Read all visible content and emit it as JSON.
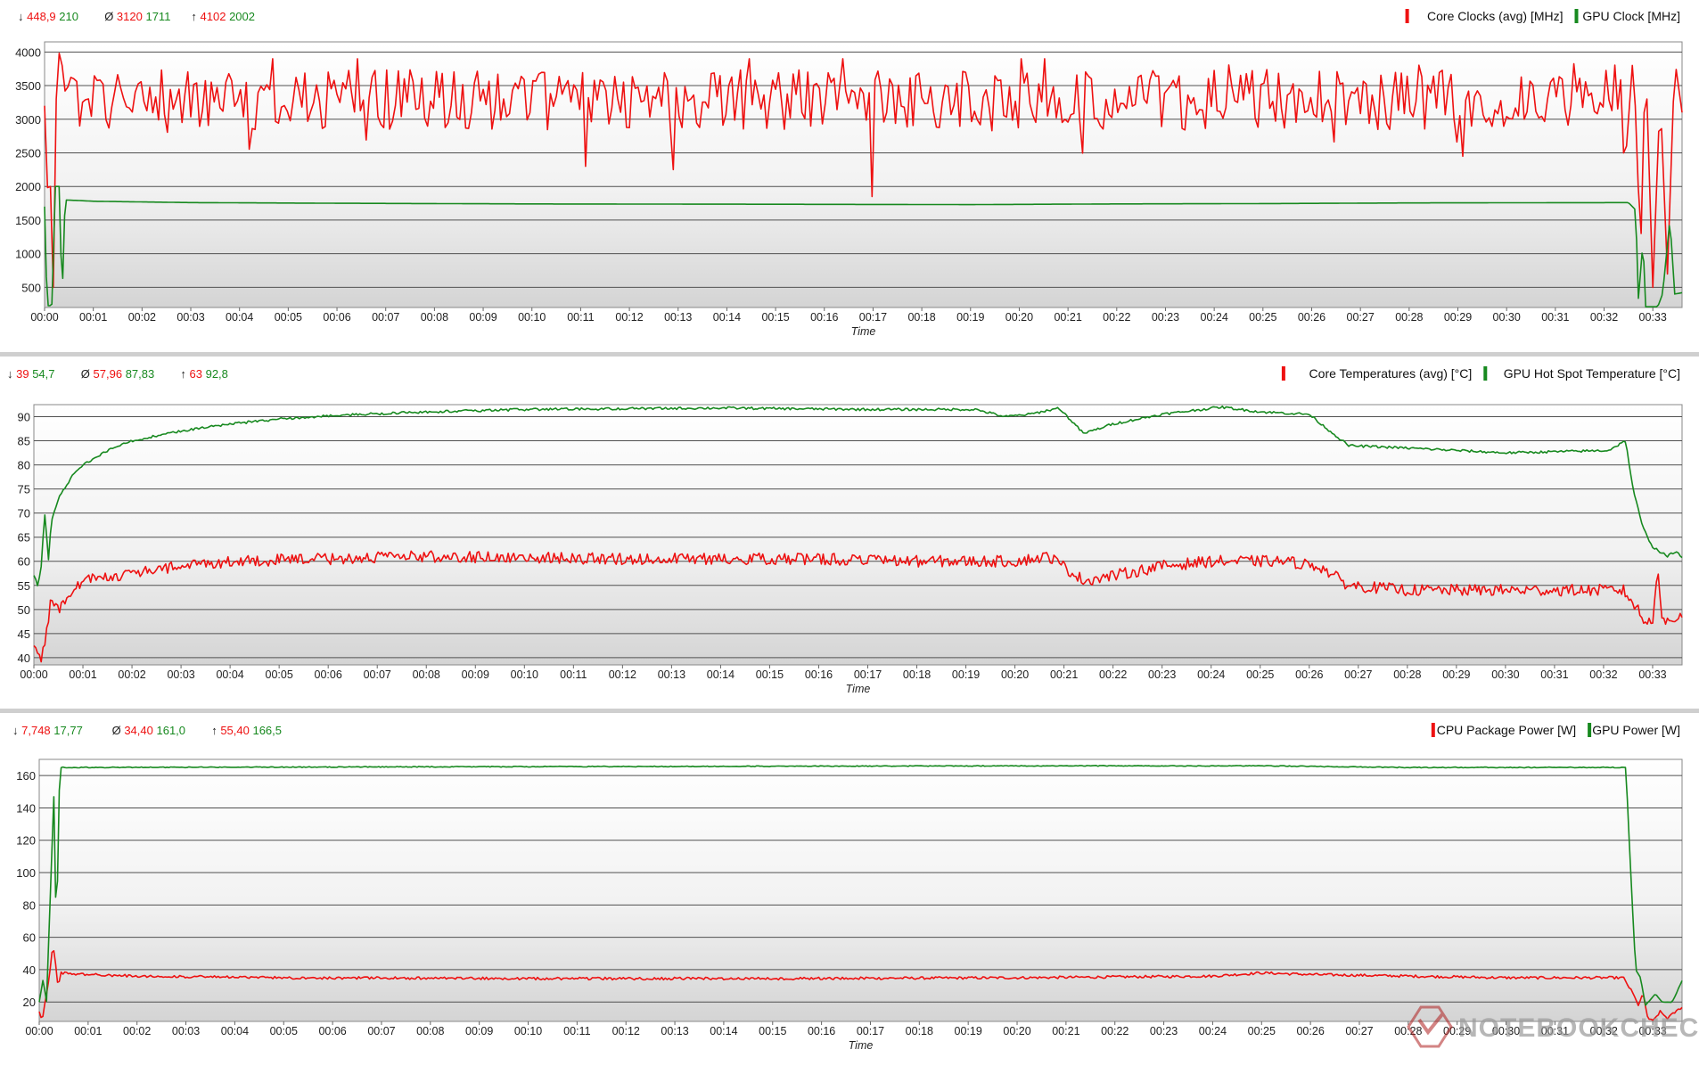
{
  "watermark": "NOTEBOOKCHECK",
  "colors": {
    "red": "#ee1111",
    "green": "#17891f",
    "grid": "#505050",
    "separator": "#cfcfcf"
  },
  "chart_data": [
    {
      "type": "line",
      "xlabel": "Time",
      "x_ticks": [
        "00:00",
        "00:01",
        "00:02",
        "00:03",
        "00:04",
        "00:05",
        "00:06",
        "00:07",
        "00:08",
        "00:09",
        "00:10",
        "00:11",
        "00:12",
        "00:13",
        "00:14",
        "00:15",
        "00:16",
        "00:17",
        "00:18",
        "00:19",
        "00:20",
        "00:21",
        "00:22",
        "00:23",
        "00:24",
        "00:25",
        "00:26",
        "00:27",
        "00:28",
        "00:29",
        "00:30",
        "00:31",
        "00:32",
        "00:33"
      ],
      "x_range_min": [
        0,
        33.6
      ],
      "ylim": [
        200,
        4150
      ],
      "y_ticks": [
        500,
        1000,
        1500,
        2000,
        2500,
        3000,
        3500,
        4000
      ],
      "stats": {
        "min": {
          "symbol": "↓",
          "values": [
            "448,9",
            "210"
          ]
        },
        "avg": {
          "symbol": "Ø",
          "values": [
            "3120",
            "1711"
          ]
        },
        "max": {
          "symbol": "↑",
          "values": [
            "4102",
            "2002"
          ]
        }
      },
      "series": [
        {
          "name": "Core Clocks (avg) [MHz]",
          "color": "#ee1111",
          "key": "cpu_clock",
          "keypoints": [
            [
              0,
              3200
            ],
            [
              0.05,
              2750
            ],
            [
              0.08,
              450
            ],
            [
              0.12,
              2000
            ],
            [
              0.18,
              500
            ],
            [
              0.22,
              3000
            ],
            [
              0.28,
              3900
            ],
            [
              0.33,
              4100
            ],
            [
              0.4,
              3400
            ],
            [
              0.5,
              3500
            ],
            [
              11.1,
              2300
            ],
            [
              12.9,
              2250
            ],
            [
              17.0,
              1850
            ],
            [
              32.45,
              2500
            ],
            [
              32.6,
              4000
            ],
            [
              32.75,
              1000
            ],
            [
              32.85,
              4000
            ],
            [
              33.0,
              500
            ],
            [
              33.15,
              3400
            ],
            [
              33.3,
              700
            ],
            [
              33.45,
              3900
            ],
            [
              33.6,
              3100
            ]
          ],
          "band": [
            2450,
            3900
          ]
        },
        {
          "name": "GPU Clock [MHz]",
          "color": "#17891f",
          "key": "gpu_clock",
          "keypoints": [
            [
              0,
              1700
            ],
            [
              0.05,
              300
            ],
            [
              0.08,
              210
            ],
            [
              0.15,
              250
            ],
            [
              0.22,
              2000
            ],
            [
              0.3,
              2000
            ],
            [
              0.36,
              300
            ],
            [
              0.42,
              1800
            ],
            [
              1,
              1780
            ],
            [
              3,
              1760
            ],
            [
              6,
              1750
            ],
            [
              10,
              1740
            ],
            [
              15,
              1735
            ],
            [
              19,
              1730
            ],
            [
              22,
              1740
            ],
            [
              25,
              1745
            ],
            [
              28,
              1755
            ],
            [
              32.5,
              1760
            ],
            [
              32.65,
              1650
            ],
            [
              32.7,
              300
            ],
            [
              32.8,
              1200
            ],
            [
              32.85,
              210
            ],
            [
              33.1,
              210
            ],
            [
              33.2,
              400
            ],
            [
              33.35,
              1500
            ],
            [
              33.45,
              400
            ],
            [
              33.6,
              420
            ]
          ],
          "band": null
        }
      ]
    },
    {
      "type": "line",
      "xlabel": "Time",
      "x_ticks": [
        "00:00",
        "00:01",
        "00:02",
        "00:03",
        "00:04",
        "00:05",
        "00:06",
        "00:07",
        "00:08",
        "00:09",
        "00:10",
        "00:11",
        "00:12",
        "00:13",
        "00:14",
        "00:15",
        "00:16",
        "00:17",
        "00:18",
        "00:19",
        "00:20",
        "00:21",
        "00:22",
        "00:23",
        "00:24",
        "00:25",
        "00:26",
        "00:27",
        "00:28",
        "00:29",
        "00:30",
        "00:31",
        "00:32",
        "00:33"
      ],
      "x_range_min": [
        0,
        33.6
      ],
      "ylim": [
        38.5,
        92.5
      ],
      "y_ticks": [
        40,
        45,
        50,
        55,
        60,
        65,
        70,
        75,
        80,
        85,
        90
      ],
      "stats": {
        "min": {
          "symbol": "↓",
          "values": [
            "39",
            "54,7"
          ]
        },
        "avg": {
          "symbol": "Ø",
          "values": [
            "57,96",
            "87,83"
          ]
        },
        "max": {
          "symbol": "↑",
          "values": [
            "63",
            "92,8"
          ]
        }
      },
      "series": [
        {
          "name": "Core Temperatures (avg) [°C]",
          "color": "#ee1111",
          "key": "cpu_temp",
          "keypoints": [
            [
              0,
              42
            ],
            [
              0.15,
              40
            ],
            [
              0.25,
              45
            ],
            [
              0.35,
              52
            ],
            [
              0.5,
              50
            ],
            [
              0.75,
              53
            ],
            [
              1,
              56
            ],
            [
              2,
              57.5
            ],
            [
              3,
              59
            ],
            [
              4,
              60
            ],
            [
              6,
              60.5
            ],
            [
              8,
              61
            ],
            [
              12,
              60.5
            ],
            [
              16,
              60.5
            ],
            [
              18,
              60
            ],
            [
              20,
              60
            ],
            [
              20.7,
              61
            ],
            [
              21.4,
              56
            ],
            [
              22,
              57
            ],
            [
              23,
              59
            ],
            [
              24,
              60
            ],
            [
              25.5,
              60
            ],
            [
              26.2,
              59
            ],
            [
              26.8,
              55
            ],
            [
              28,
              54
            ],
            [
              30,
              54
            ],
            [
              32.4,
              54
            ],
            [
              32.7,
              50
            ],
            [
              32.85,
              47
            ],
            [
              33.0,
              48
            ],
            [
              33.1,
              59
            ],
            [
              33.2,
              48
            ],
            [
              33.3,
              47
            ],
            [
              33.6,
              49
            ]
          ],
          "noise": 1.2
        },
        {
          "name": "GPU Hot Spot Temperature [°C]",
          "color": "#17891f",
          "key": "gpu_temp",
          "keypoints": [
            [
              0,
              57
            ],
            [
              0.08,
              55
            ],
            [
              0.15,
              59
            ],
            [
              0.22,
              70
            ],
            [
              0.3,
              60
            ],
            [
              0.35,
              68
            ],
            [
              0.5,
              73
            ],
            [
              0.8,
              78
            ],
            [
              1,
              80
            ],
            [
              1.5,
              83
            ],
            [
              2,
              85
            ],
            [
              3,
              87
            ],
            [
              4,
              88.5
            ],
            [
              5,
              89.5
            ],
            [
              6,
              90.2
            ],
            [
              8,
              91
            ],
            [
              10,
              91.5
            ],
            [
              14,
              91.8
            ],
            [
              17,
              91.5
            ],
            [
              19.2,
              91.5
            ],
            [
              19.8,
              90
            ],
            [
              20.3,
              90.5
            ],
            [
              20.9,
              91.8
            ],
            [
              21.4,
              86.5
            ],
            [
              22,
              88.5
            ],
            [
              23,
              90.5
            ],
            [
              24.2,
              92
            ],
            [
              25,
              91
            ],
            [
              26.0,
              90.5
            ],
            [
              26.3,
              88
            ],
            [
              26.8,
              84
            ],
            [
              28,
              83.5
            ],
            [
              30,
              82.5
            ],
            [
              32.1,
              83
            ],
            [
              32.45,
              85
            ],
            [
              32.6,
              75
            ],
            [
              32.8,
              67
            ],
            [
              33.0,
              63
            ],
            [
              33.3,
              61
            ],
            [
              33.45,
              62
            ],
            [
              33.6,
              61
            ]
          ],
          "noise": 0.25
        }
      ]
    },
    {
      "type": "line",
      "xlabel": "Time",
      "x_ticks": [
        "00:00",
        "00:01",
        "00:02",
        "00:03",
        "00:04",
        "00:05",
        "00:06",
        "00:07",
        "00:08",
        "00:09",
        "00:10",
        "00:11",
        "00:12",
        "00:13",
        "00:14",
        "00:15",
        "00:16",
        "00:17",
        "00:18",
        "00:19",
        "00:20",
        "00:21",
        "00:22",
        "00:23",
        "00:24",
        "00:25",
        "00:26",
        "00:27",
        "00:28",
        "00:29",
        "00:30",
        "00:31",
        "00:32",
        "00:33"
      ],
      "x_range_min": [
        0,
        33.6
      ],
      "ylim": [
        8,
        170
      ],
      "y_ticks": [
        20,
        40,
        60,
        80,
        100,
        120,
        140,
        160
      ],
      "stats": {
        "min": {
          "symbol": "↓",
          "values": [
            "7,748",
            "17,77"
          ]
        },
        "avg": {
          "symbol": "Ø",
          "values": [
            "34,40",
            "161,0"
          ]
        },
        "max": {
          "symbol": "↑",
          "values": [
            "55,40",
            "166,5"
          ]
        }
      },
      "series": [
        {
          "name": "CPU Package Power [W]",
          "color": "#ee1111",
          "key": "cpu_power",
          "keypoints": [
            [
              0,
              14
            ],
            [
              0.06,
              9
            ],
            [
              0.12,
              20
            ],
            [
              0.2,
              35
            ],
            [
              0.28,
              55
            ],
            [
              0.33,
              45
            ],
            [
              0.38,
              30
            ],
            [
              0.45,
              38
            ],
            [
              1,
              37
            ],
            [
              2,
              36
            ],
            [
              5,
              35
            ],
            [
              10,
              34.5
            ],
            [
              15,
              34.5
            ],
            [
              20,
              35
            ],
            [
              24,
              36
            ],
            [
              25,
              38
            ],
            [
              26,
              37
            ],
            [
              28,
              36
            ],
            [
              30,
              35
            ],
            [
              32.4,
              35
            ],
            [
              32.6,
              25
            ],
            [
              32.7,
              18
            ],
            [
              32.8,
              25
            ],
            [
              32.9,
              10
            ],
            [
              33.0,
              8
            ],
            [
              33.15,
              14
            ],
            [
              33.3,
              10
            ],
            [
              33.6,
              17
            ]
          ],
          "noise": 0.8
        },
        {
          "name": "GPU Power [W]",
          "color": "#17891f",
          "key": "gpu_power",
          "keypoints": [
            [
              0,
              20
            ],
            [
              0.08,
              34
            ],
            [
              0.15,
              20
            ],
            [
              0.22,
              80
            ],
            [
              0.3,
              148
            ],
            [
              0.35,
              60
            ],
            [
              0.42,
              165
            ],
            [
              1,
              165
            ],
            [
              10,
              165.5
            ],
            [
              20,
              166
            ],
            [
              25,
              166
            ],
            [
              28,
              165
            ],
            [
              32.45,
              165
            ],
            [
              32.55,
              100
            ],
            [
              32.65,
              40
            ],
            [
              32.75,
              35
            ],
            [
              32.85,
              18
            ],
            [
              33.05,
              25
            ],
            [
              33.2,
              20
            ],
            [
              33.4,
              20
            ],
            [
              33.6,
              33
            ]
          ],
          "noise": 0.25
        }
      ]
    }
  ]
}
